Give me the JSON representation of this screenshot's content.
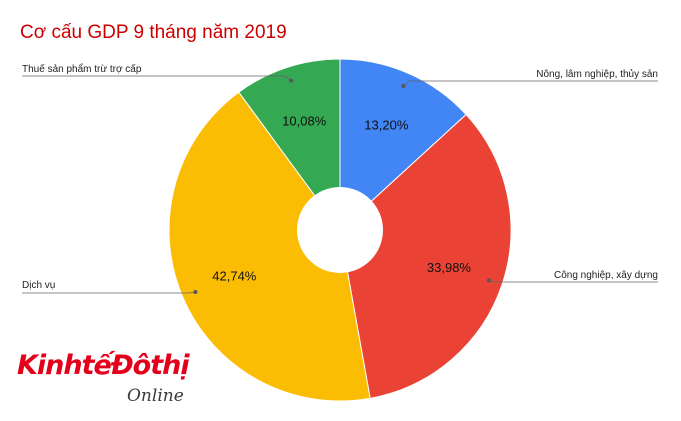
{
  "title": "Cơ cấu GDP 9 tháng năm 2019",
  "logo": {
    "main": "KinhtếĐôthị",
    "sub": "Online"
  },
  "chart_data": {
    "type": "pie",
    "style": "donut",
    "slices": [
      {
        "label": "Nông, lâm nghiệp, thủy sản",
        "value": 13.2,
        "value_label": "13,20%",
        "color": "#4285f4"
      },
      {
        "label": "Công nghiệp, xây dựng",
        "value": 33.98,
        "value_label": "33,98%",
        "color": "#ea4335"
      },
      {
        "label": "Dịch vụ",
        "value": 42.74,
        "value_label": "42,74%",
        "color": "#fbbc04"
      },
      {
        "label": "Thuế sản phẩm trừ trợ cấp",
        "value": 10.08,
        "value_label": "10,08%",
        "color": "#34a853"
      }
    ],
    "start_angle": "12 o'clock",
    "direction": "clockwise",
    "legend": "callout labels"
  }
}
